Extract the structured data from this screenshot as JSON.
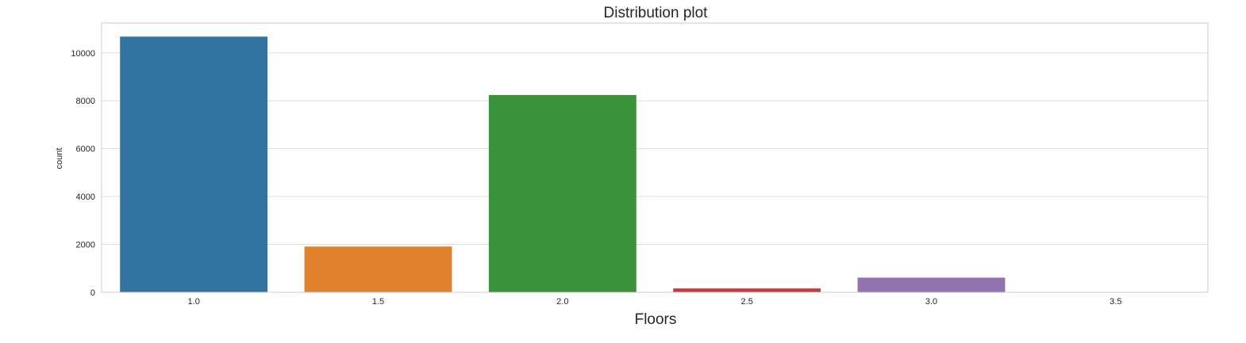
{
  "chart_data": {
    "type": "bar",
    "title": "Distribution plot",
    "xlabel": "Floors",
    "ylabel": "count",
    "categories": [
      "1.0",
      "1.5",
      "2.0",
      "2.5",
      "3.0",
      "3.5"
    ],
    "values": [
      10680,
      1910,
      8241,
      161,
      613,
      8
    ],
    "colors": [
      "#3274a1",
      "#e1812c",
      "#3a923a",
      "#c03d3e",
      "#9372b2",
      "#845b53"
    ],
    "ylim": [
      0,
      11250
    ],
    "yticks": [
      0,
      2000,
      4000,
      6000,
      8000,
      10000
    ],
    "grid": true
  }
}
